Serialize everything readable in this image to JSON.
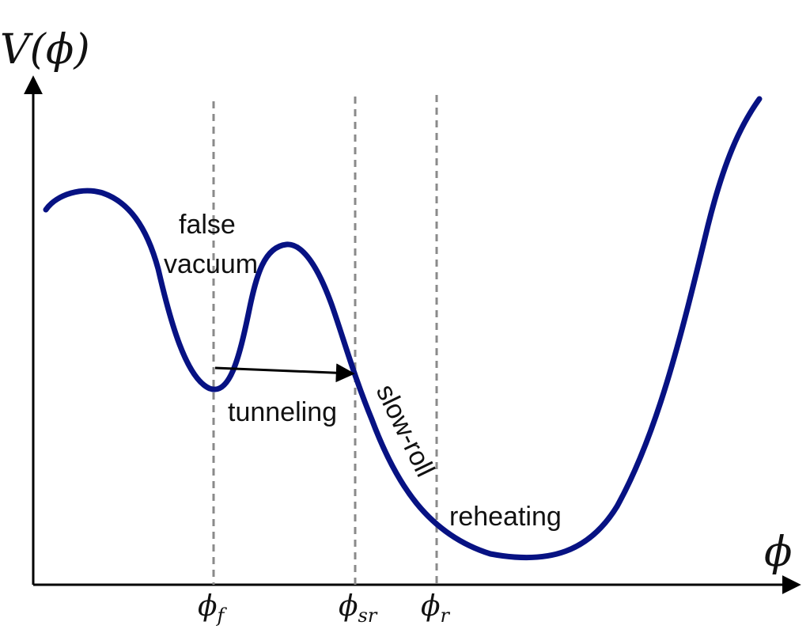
{
  "axes": {
    "y_label_main": "V",
    "y_label_open": "(",
    "y_label_symbol": "ϕ",
    "y_label_close": ")",
    "x_label": "ϕ"
  },
  "markers": {
    "phi_f": {
      "symbol": "ϕ",
      "subscript": "f"
    },
    "phi_sr": {
      "symbol": "ϕ",
      "subscript": "sr"
    },
    "phi_r": {
      "symbol": "ϕ",
      "subscript": "r"
    }
  },
  "annotations": {
    "false_vacuum_line1": "false",
    "false_vacuum_line2": "vacuum",
    "tunneling": "tunneling",
    "slow_roll": "slow-roll",
    "reheating": "reheating"
  },
  "colors": {
    "curve": "#071283",
    "axis": "#000000",
    "guide": "#8a8a8a",
    "text": "#111111"
  }
}
